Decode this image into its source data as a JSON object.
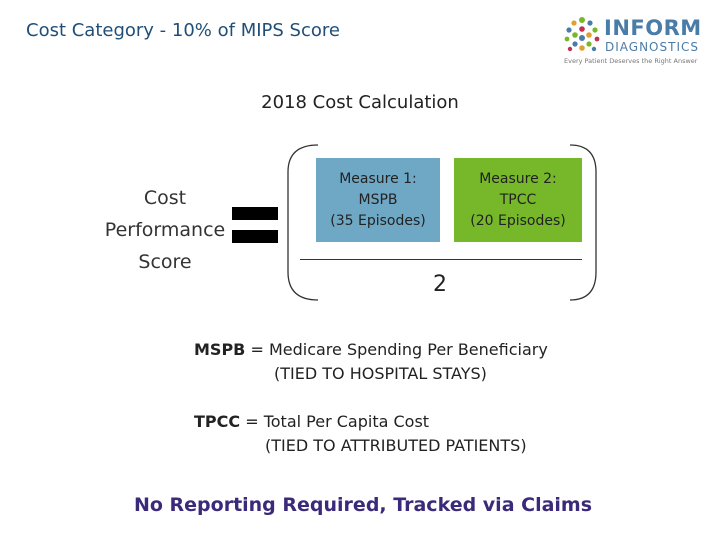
{
  "slide": {
    "title": "Cost Category  - 10% of MIPS Score",
    "calc_title": "2018 Cost Calculation"
  },
  "logo": {
    "main": "INFORM",
    "sub": "DIAGNOSTICS",
    "tagline": "Every Patient Deserves the Right Answer",
    "colors": [
      "#4a7ca8",
      "#76b82a",
      "#e0a030",
      "#c03050"
    ]
  },
  "formula": {
    "lhs_lines": [
      "Cost",
      "Performance",
      "Score"
    ],
    "measure1": {
      "lines": [
        "Measure 1:",
        "MSPB",
        "(35 Episodes)"
      ],
      "color": "#6fa8c4"
    },
    "measure2": {
      "lines": [
        "Measure 2:",
        "TPCC",
        "(20 Episodes)"
      ],
      "color": "#76b82a"
    },
    "divisor": "2"
  },
  "definitions": {
    "mspb": {
      "term": "MSPB",
      "text": " = Medicare Spending Per Beneficiary",
      "note": "(TIED TO HOSPITAL STAYS)"
    },
    "tpcc": {
      "term": "TPCC",
      "text": " = Total Per Capita Cost",
      "note": "(TIED TO ATTRIBUTED PATIENTS)"
    }
  },
  "footer": "No Reporting Required, Tracked via Claims"
}
